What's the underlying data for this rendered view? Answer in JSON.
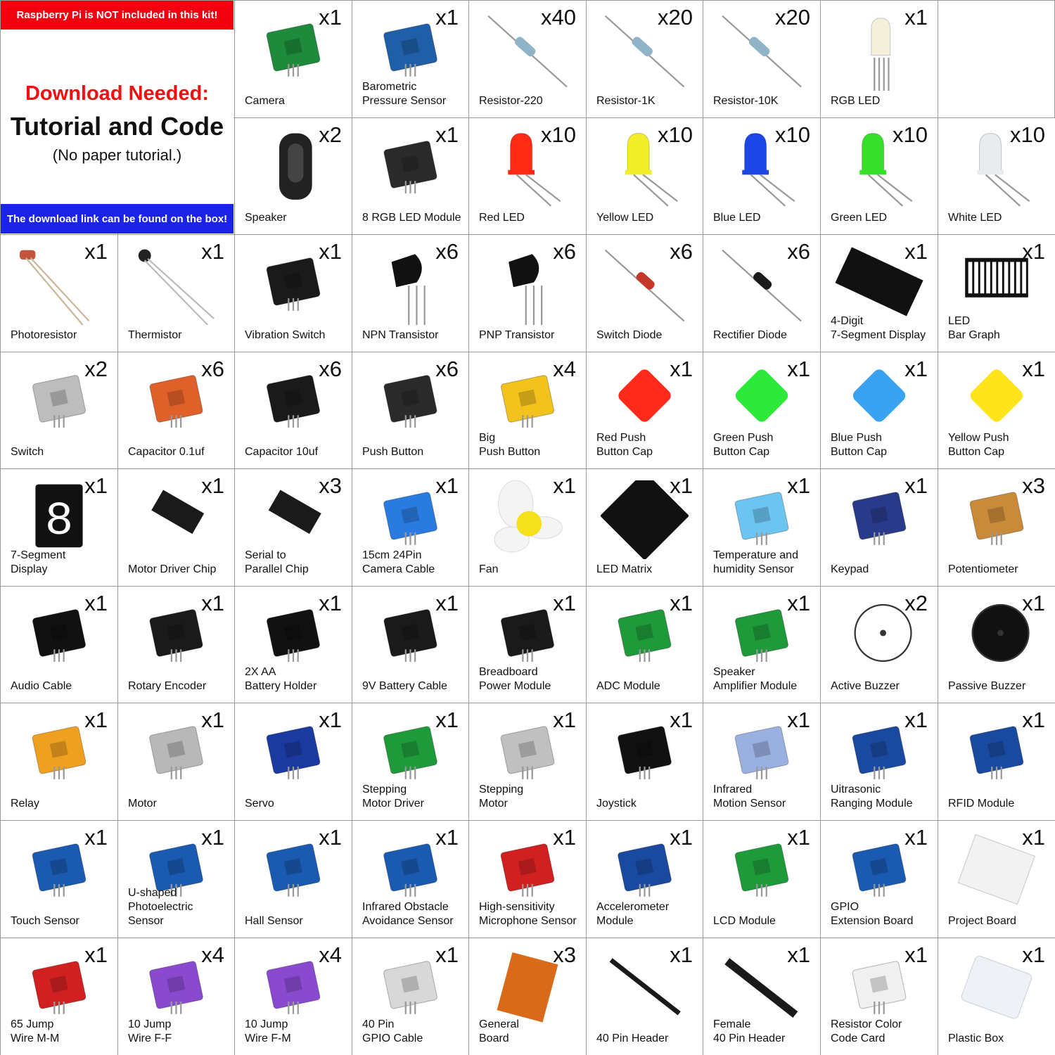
{
  "info": {
    "top_banner": "Raspberry Pi is NOT included in this kit!",
    "headline": "Download Needed:",
    "subhead": "Tutorial and Code",
    "note": "(No paper tutorial.)",
    "bottom_banner": "The download link can be found on the box!",
    "colors": {
      "top_banner": "#f2000f",
      "bottom_banner": "#1a23e6",
      "headline": "#ee1111"
    }
  },
  "items": [
    {
      "label": "Camera",
      "qty": "x1",
      "icon": "camera-icon",
      "color": "#1e8a3c",
      "row": 0,
      "col": 2
    },
    {
      "label": "Barometric\nPressure Sensor",
      "qty": "x1",
      "icon": "barometric-sensor-icon",
      "color": "#1f5fa8",
      "row": 0,
      "col": 3
    },
    {
      "label": "Resistor-220",
      "qty": "x40",
      "icon": "resistor-icon",
      "color": "#8fb4c8",
      "row": 0,
      "col": 4
    },
    {
      "label": "Resistor-1K",
      "qty": "x20",
      "icon": "resistor-icon",
      "color": "#8fb4c8",
      "row": 0,
      "col": 5
    },
    {
      "label": "Resistor-10K",
      "qty": "x20",
      "icon": "resistor-icon",
      "color": "#8fb4c8",
      "row": 0,
      "col": 6
    },
    {
      "label": "RGB LED",
      "qty": "x1",
      "icon": "rgb-led-icon",
      "color": "#f4f0dc",
      "row": 0,
      "col": 7
    },
    {
      "label": "Speaker",
      "qty": "x2",
      "icon": "speaker-icon",
      "color": "#222222",
      "row": 1,
      "col": 2
    },
    {
      "label": "8 RGB LED Module",
      "qty": "x1",
      "icon": "rgb-led-module-icon",
      "color": "#2a2a2a",
      "row": 1,
      "col": 3
    },
    {
      "label": "Red LED",
      "qty": "x10",
      "icon": "led-icon",
      "color": "#ff2a14",
      "row": 1,
      "col": 4
    },
    {
      "label": "Yellow LED",
      "qty": "x10",
      "icon": "led-icon",
      "color": "#f3ee2a",
      "row": 1,
      "col": 5
    },
    {
      "label": "Blue LED",
      "qty": "x10",
      "icon": "led-icon",
      "color": "#1c46e6",
      "row": 1,
      "col": 6
    },
    {
      "label": "Green LED",
      "qty": "x10",
      "icon": "led-icon",
      "color": "#36e02a",
      "row": 1,
      "col": 7
    },
    {
      "label": "White LED",
      "qty": "x10",
      "icon": "led-icon",
      "color": "#e8ecef",
      "row": 1,
      "col": 8
    },
    {
      "label": "Photoresistor",
      "qty": "x1",
      "icon": "photoresistor-icon",
      "color": "#c2553c",
      "row": 2,
      "col": 0
    },
    {
      "label": "Thermistor",
      "qty": "x1",
      "icon": "thermistor-icon",
      "color": "#222222",
      "row": 2,
      "col": 1
    },
    {
      "label": "Vibration Switch",
      "qty": "x1",
      "icon": "vibration-switch-icon",
      "color": "#1a1a1a",
      "row": 2,
      "col": 2
    },
    {
      "label": "NPN Transistor",
      "qty": "x6",
      "icon": "transistor-icon",
      "color": "#111111",
      "row": 2,
      "col": 3
    },
    {
      "label": "PNP Transistor",
      "qty": "x6",
      "icon": "transistor-icon",
      "color": "#111111",
      "row": 2,
      "col": 4
    },
    {
      "label": "Switch Diode",
      "qty": "x6",
      "icon": "diode-icon",
      "color": "#c4382a",
      "row": 2,
      "col": 5
    },
    {
      "label": "Rectifier Diode",
      "qty": "x6",
      "icon": "diode-icon",
      "color": "#1a1a1a",
      "row": 2,
      "col": 6
    },
    {
      "label": "4-Digit\n7-Segment Display",
      "qty": "x1",
      "icon": "seven-segment-4digit-icon",
      "color": "#111111",
      "row": 2,
      "col": 7
    },
    {
      "label": "LED\nBar Graph",
      "qty": "x1",
      "icon": "led-bar-graph-icon",
      "color": "#111111",
      "row": 2,
      "col": 8
    },
    {
      "label": "Switch",
      "qty": "x2",
      "icon": "slide-switch-icon",
      "color": "#bdbdbd",
      "row": 3,
      "col": 0
    },
    {
      "label": "Capacitor 0.1uf",
      "qty": "x6",
      "icon": "ceramic-capacitor-icon",
      "color": "#e0602a",
      "row": 3,
      "col": 1
    },
    {
      "label": "Capacitor 10uf",
      "qty": "x6",
      "icon": "electrolytic-capacitor-icon",
      "color": "#1a1a1a",
      "row": 3,
      "col": 2
    },
    {
      "label": "Push Button",
      "qty": "x6",
      "icon": "push-button-icon",
      "color": "#2a2a2a",
      "row": 3,
      "col": 3
    },
    {
      "label": "Big\nPush Button",
      "qty": "x4",
      "icon": "big-push-button-icon",
      "color": "#f3c21c",
      "row": 3,
      "col": 4
    },
    {
      "label": "Red Push\nButton Cap",
      "qty": "x1",
      "icon": "button-cap-icon",
      "color": "#ff2a1a",
      "row": 3,
      "col": 5
    },
    {
      "label": "Green Push\nButton Cap",
      "qty": "x1",
      "icon": "button-cap-icon",
      "color": "#2ee83a",
      "row": 3,
      "col": 6
    },
    {
      "label": "Blue Push\nButton Cap",
      "qty": "x1",
      "icon": "button-cap-icon",
      "color": "#3aa2f2",
      "row": 3,
      "col": 7
    },
    {
      "label": "Yellow Push\nButton Cap",
      "qty": "x1",
      "icon": "button-cap-icon",
      "color": "#ffe41a",
      "row": 3,
      "col": 8
    },
    {
      "label": "7-Segment\nDisplay",
      "qty": "x1",
      "icon": "seven-segment-icon",
      "color": "#111111",
      "row": 4,
      "col": 0
    },
    {
      "label": "Motor Driver Chip",
      "qty": "x1",
      "icon": "ic-chip-icon",
      "color": "#1a1a1a",
      "row": 4,
      "col": 1
    },
    {
      "label": "Serial to\nParallel Chip",
      "qty": "x3",
      "icon": "ic-chip-icon",
      "color": "#1a1a1a",
      "row": 4,
      "col": 2
    },
    {
      "label": "15cm 24Pin\nCamera Cable",
      "qty": "x1",
      "icon": "ribbon-cable-icon",
      "color": "#2a7be0",
      "row": 4,
      "col": 3
    },
    {
      "label": "Fan",
      "qty": "x1",
      "icon": "fan-icon",
      "color": "#f5e01c",
      "row": 4,
      "col": 4
    },
    {
      "label": "LED Matrix",
      "qty": "x1",
      "icon": "led-matrix-icon",
      "color": "#111111",
      "row": 4,
      "col": 5
    },
    {
      "label": "Temperature and\nhumidity Sensor",
      "qty": "x1",
      "icon": "dht-sensor-icon",
      "color": "#6cc4f0",
      "row": 4,
      "col": 6
    },
    {
      "label": "Keypad",
      "qty": "x1",
      "icon": "keypad-icon",
      "color": "#2a3a8a",
      "row": 4,
      "col": 7
    },
    {
      "label": "Potentiometer",
      "qty": "x3",
      "icon": "potentiometer-icon",
      "color": "#c98a3a",
      "row": 4,
      "col": 8
    },
    {
      "label": "Audio Cable",
      "qty": "x1",
      "icon": "audio-cable-icon",
      "color": "#111111",
      "row": 5,
      "col": 0
    },
    {
      "label": "Rotary Encoder",
      "qty": "x1",
      "icon": "rotary-encoder-icon",
      "color": "#1a1a1a",
      "row": 5,
      "col": 1
    },
    {
      "label": "2X AA\nBattery Holder",
      "qty": "x1",
      "icon": "battery-holder-icon",
      "color": "#111111",
      "row": 5,
      "col": 2
    },
    {
      "label": "9V Battery Cable",
      "qty": "x1",
      "icon": "battery-cable-icon",
      "color": "#1a1a1a",
      "row": 5,
      "col": 3
    },
    {
      "label": "Breadboard\nPower Module",
      "qty": "x1",
      "icon": "power-module-icon",
      "color": "#1a1a1a",
      "row": 5,
      "col": 4
    },
    {
      "label": "ADC Module",
      "qty": "x1",
      "icon": "adc-module-icon",
      "color": "#1f9a3a",
      "row": 5,
      "col": 5
    },
    {
      "label": "Speaker\nAmplifier Module",
      "qty": "x1",
      "icon": "amplifier-module-icon",
      "color": "#1f9a3a",
      "row": 5,
      "col": 6
    },
    {
      "label": "Active Buzzer",
      "qty": "x2",
      "icon": "active-buzzer-icon",
      "color": "#ffffff",
      "row": 5,
      "col": 7
    },
    {
      "label": "Passive Buzzer",
      "qty": "x1",
      "icon": "passive-buzzer-icon",
      "color": "#111111",
      "row": 5,
      "col": 8
    },
    {
      "label": "Relay",
      "qty": "x1",
      "icon": "relay-icon",
      "color": "#f0a020",
      "row": 6,
      "col": 0
    },
    {
      "label": "Motor",
      "qty": "x1",
      "icon": "motor-icon",
      "color": "#b8b8b8",
      "row": 6,
      "col": 1
    },
    {
      "label": "Servo",
      "qty": "x1",
      "icon": "servo-icon",
      "color": "#1a3aa0",
      "row": 6,
      "col": 2
    },
    {
      "label": "Stepping\nMotor Driver",
      "qty": "x1",
      "icon": "stepper-driver-icon",
      "color": "#1f9a3a",
      "row": 6,
      "col": 3
    },
    {
      "label": "Stepping\nMotor",
      "qty": "x1",
      "icon": "stepper-motor-icon",
      "color": "#c0c0c0",
      "row": 6,
      "col": 4
    },
    {
      "label": "Joystick",
      "qty": "x1",
      "icon": "joystick-icon",
      "color": "#111111",
      "row": 6,
      "col": 5
    },
    {
      "label": "Infrared\nMotion Sensor",
      "qty": "x1",
      "icon": "pir-sensor-icon",
      "color": "#9ab0e0",
      "row": 6,
      "col": 6
    },
    {
      "label": "Uitrasonic\nRanging Module",
      "qty": "x1",
      "icon": "ultrasonic-sensor-icon",
      "color": "#1a4aa0",
      "row": 6,
      "col": 7
    },
    {
      "label": "RFID Module",
      "qty": "x1",
      "icon": "rfid-module-icon",
      "color": "#1a4aa0",
      "row": 6,
      "col": 8
    },
    {
      "label": "Touch Sensor",
      "qty": "x1",
      "icon": "touch-sensor-icon",
      "color": "#1a5ab0",
      "row": 7,
      "col": 0
    },
    {
      "label": "U-shaped\nPhotoelectric Sensor",
      "qty": "x1",
      "icon": "photoelectric-sensor-icon",
      "color": "#1a5ab0",
      "row": 7,
      "col": 1
    },
    {
      "label": "Hall Sensor",
      "qty": "x1",
      "icon": "hall-sensor-icon",
      "color": "#1a5ab0",
      "row": 7,
      "col": 2
    },
    {
      "label": "Infrared Obstacle\nAvoidance Sensor",
      "qty": "x1",
      "icon": "ir-obstacle-sensor-icon",
      "color": "#1a5ab0",
      "row": 7,
      "col": 3
    },
    {
      "label": "High-sensitivity\nMicrophone Sensor",
      "qty": "x1",
      "icon": "microphone-sensor-icon",
      "color": "#d02020",
      "row": 7,
      "col": 4
    },
    {
      "label": "Accelerometer\nModule",
      "qty": "x1",
      "icon": "accelerometer-module-icon",
      "color": "#1a4aa0",
      "row": 7,
      "col": 5
    },
    {
      "label": "LCD Module",
      "qty": "x1",
      "icon": "lcd-module-icon",
      "color": "#1f9a3a",
      "row": 7,
      "col": 6
    },
    {
      "label": "GPIO\nExtension Board",
      "qty": "x1",
      "icon": "gpio-extension-board-icon",
      "color": "#1a5ab0",
      "row": 7,
      "col": 7
    },
    {
      "label": "Project Board",
      "qty": "x1",
      "icon": "breadboard-icon",
      "color": "#f2f2f2",
      "row": 7,
      "col": 8
    },
    {
      "label": "65 Jump\nWire M-M",
      "qty": "x1",
      "icon": "jumper-wires-icon",
      "color": "#d02020",
      "row": 8,
      "col": 0
    },
    {
      "label": "10 Jump\nWire F-F",
      "qty": "x4",
      "icon": "jumper-ribbon-icon",
      "color": "#8a4ad0",
      "row": 8,
      "col": 1
    },
    {
      "label": "10 Jump\nWire F-M",
      "qty": "x4",
      "icon": "jumper-ribbon-icon",
      "color": "#8a4ad0",
      "row": 8,
      "col": 2
    },
    {
      "label": "40 Pin\nGPIO Cable",
      "qty": "x1",
      "icon": "gpio-cable-icon",
      "color": "#d8d8d8",
      "row": 8,
      "col": 3
    },
    {
      "label": "General\nBoard",
      "qty": "x3",
      "icon": "perfboard-icon",
      "color": "#d86a1a",
      "row": 8,
      "col": 4
    },
    {
      "label": "40 Pin Header",
      "qty": "x1",
      "icon": "pin-header-icon",
      "color": "#1a1a1a",
      "row": 8,
      "col": 5
    },
    {
      "label": "Female\n40 Pin Header",
      "qty": "x1",
      "icon": "female-header-icon",
      "color": "#1a1a1a",
      "row": 8,
      "col": 6
    },
    {
      "label": "Resistor Color\nCode Card",
      "qty": "x1",
      "icon": "color-code-card-icon",
      "color": "#f0f0f0",
      "row": 8,
      "col": 7
    },
    {
      "label": "Plastic Box",
      "qty": "x1",
      "icon": "plastic-box-icon",
      "color": "#eef2f6",
      "row": 8,
      "col": 8
    }
  ]
}
